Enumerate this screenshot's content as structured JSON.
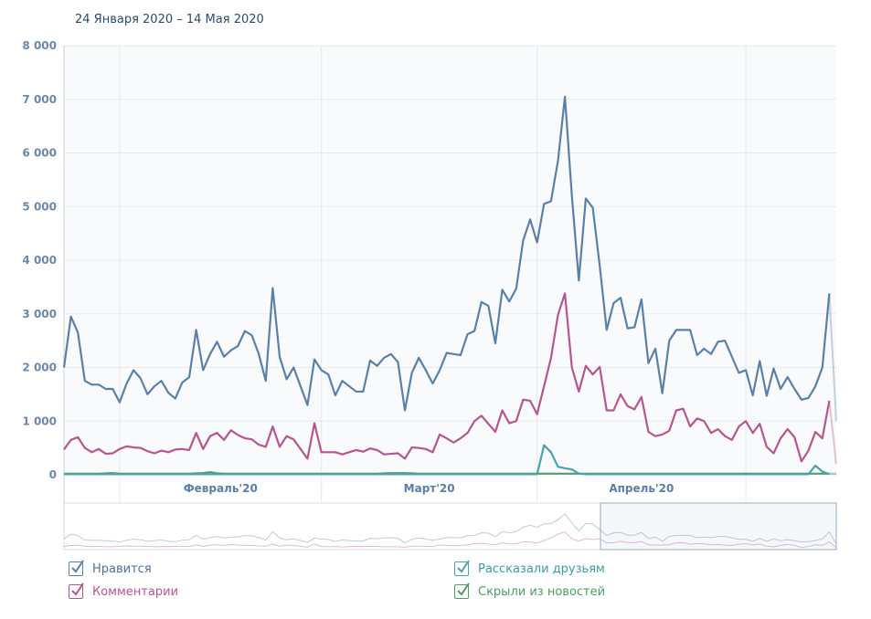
{
  "period": "24 Января 2020 – 14 Мая 2020",
  "chart_data": {
    "type": "line",
    "start_date": "2020-01-24",
    "end_date": "2020-05-14",
    "ylim": [
      0,
      8000
    ],
    "yticks": [
      0,
      1000,
      2000,
      3000,
      4000,
      5000,
      6000,
      7000,
      8000
    ],
    "ytick_labels": [
      "0",
      "1 000",
      "2 000",
      "3 000",
      "4 000",
      "5 000",
      "6 000",
      "7 000",
      "8 000"
    ],
    "month_labels": [
      {
        "label": "Февраль'20",
        "day_index": 8,
        "span": 29
      },
      {
        "label": "Март'20",
        "day_index": 37,
        "span": 31
      },
      {
        "label": "Апрель'20",
        "day_index": 68,
        "span": 30
      }
    ],
    "month_boundaries_day_index": [
      8,
      37,
      68,
      98
    ],
    "grid": true,
    "legend_placement": "bottom",
    "series": [
      {
        "name": "Нравится",
        "color": "#5a80a8",
        "checked": true,
        "values": [
          2000,
          2950,
          2650,
          1750,
          1680,
          1680,
          1600,
          1600,
          1350,
          1700,
          1950,
          1800,
          1500,
          1650,
          1750,
          1530,
          1420,
          1720,
          1820,
          2700,
          1950,
          2250,
          2480,
          2200,
          2320,
          2400,
          2680,
          2600,
          2250,
          1750,
          3480,
          2200,
          1780,
          2000,
          1650,
          1300,
          2150,
          1950,
          1870,
          1480,
          1750,
          1650,
          1550,
          1550,
          2130,
          2030,
          2180,
          2250,
          2100,
          1200,
          1900,
          2180,
          1950,
          1700,
          1950,
          2270,
          2250,
          2230,
          2620,
          2680,
          3220,
          3150,
          2450,
          3450,
          3230,
          3470,
          4370,
          4760,
          4330,
          5050,
          5100,
          5850,
          7050,
          5200,
          3620,
          5150,
          4980,
          3900,
          2700,
          3200,
          3300,
          2730,
          2750,
          3270,
          2080,
          2350,
          1520,
          2500,
          2700,
          2700,
          2700,
          2230,
          2350,
          2250,
          2480,
          2500,
          2200,
          1900,
          1950,
          1480,
          2120,
          1470,
          1980,
          1600,
          1820,
          1600,
          1400,
          1430,
          1650,
          2000,
          3380,
          1000
        ]
      },
      {
        "name": "Комментарии",
        "color": "#b5568f",
        "checked": true,
        "values": [
          470,
          650,
          700,
          500,
          420,
          480,
          390,
          400,
          480,
          530,
          510,
          500,
          440,
          400,
          450,
          420,
          470,
          480,
          460,
          780,
          480,
          720,
          780,
          650,
          830,
          740,
          680,
          660,
          560,
          520,
          900,
          520,
          720,
          660,
          480,
          300,
          960,
          420,
          420,
          420,
          380,
          420,
          460,
          430,
          490,
          460,
          380,
          390,
          400,
          300,
          510,
          500,
          480,
          420,
          750,
          680,
          600,
          680,
          780,
          1000,
          1100,
          950,
          800,
          1200,
          960,
          1000,
          1400,
          1380,
          1130,
          1650,
          2180,
          2980,
          3380,
          2000,
          1550,
          2030,
          1870,
          2010,
          1200,
          1200,
          1500,
          1280,
          1220,
          1450,
          800,
          720,
          750,
          820,
          1200,
          1230,
          900,
          1050,
          1000,
          780,
          850,
          720,
          650,
          900,
          1000,
          780,
          950,
          520,
          400,
          680,
          850,
          700,
          250,
          450,
          800,
          680,
          1380,
          200
        ]
      },
      {
        "name": "Рассказали друзьям",
        "color": "#4aa3a8",
        "checked": true,
        "values": [
          10,
          10,
          10,
          10,
          10,
          10,
          10,
          10,
          10,
          10,
          10,
          10,
          10,
          10,
          10,
          10,
          10,
          10,
          10,
          10,
          10,
          10,
          10,
          10,
          10,
          10,
          10,
          10,
          10,
          10,
          10,
          10,
          10,
          10,
          10,
          10,
          10,
          10,
          10,
          10,
          10,
          10,
          10,
          10,
          10,
          10,
          10,
          10,
          10,
          10,
          10,
          10,
          10,
          10,
          10,
          10,
          10,
          10,
          10,
          10,
          10,
          10,
          10,
          10,
          10,
          10,
          10,
          10,
          10,
          550,
          420,
          150,
          120,
          100,
          20,
          10,
          10,
          10,
          10,
          10,
          10,
          10,
          10,
          10,
          10,
          10,
          10,
          10,
          10,
          10,
          10,
          10,
          10,
          10,
          10,
          10,
          10,
          10,
          10,
          10,
          10,
          10,
          10,
          10,
          10,
          10,
          10,
          10,
          170,
          60,
          10,
          10
        ]
      },
      {
        "name": "Скрыли из новостей",
        "color": "#4e9c68",
        "checked": true,
        "values": [
          20,
          20,
          20,
          20,
          20,
          20,
          25,
          30,
          20,
          20,
          20,
          20,
          20,
          20,
          20,
          20,
          20,
          20,
          20,
          25,
          30,
          50,
          25,
          20,
          20,
          20,
          20,
          20,
          20,
          20,
          20,
          20,
          20,
          20,
          20,
          20,
          20,
          20,
          20,
          20,
          20,
          20,
          20,
          20,
          20,
          20,
          25,
          30,
          30,
          30,
          25,
          20,
          20,
          20,
          20,
          20,
          20,
          20,
          20,
          20,
          20,
          20,
          20,
          20,
          20,
          20,
          20,
          20,
          20,
          20,
          20,
          20,
          20,
          20,
          20,
          20,
          20,
          20,
          20,
          20,
          20,
          20,
          20,
          20,
          20,
          20,
          20,
          20,
          20,
          20,
          20,
          20,
          20,
          20,
          20,
          20,
          20,
          20,
          20,
          20,
          20,
          20,
          20,
          20,
          20,
          20,
          20,
          20,
          20,
          20,
          20,
          20
        ]
      }
    ]
  }
}
